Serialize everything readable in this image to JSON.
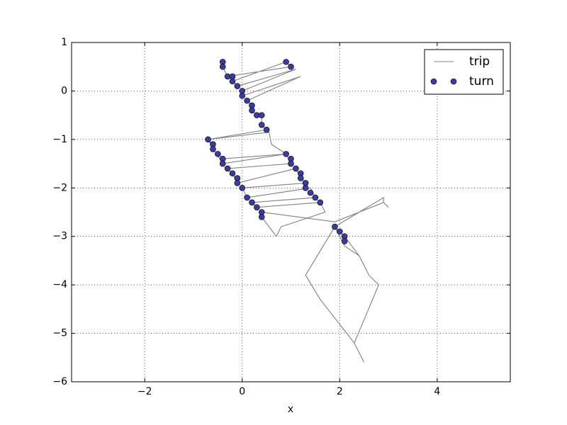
{
  "chart_data": {
    "type": "line",
    "xlabel": "x",
    "xlim": [
      -3.5,
      5.5
    ],
    "ylim": [
      -6,
      1
    ],
    "xticks": [
      {
        "value": -2,
        "label": "−2"
      },
      0,
      2,
      4
    ],
    "yticks": [
      1,
      0,
      {
        "value": -1,
        "label": "−1"
      },
      {
        "value": -2,
        "label": "−2"
      },
      {
        "value": -3,
        "label": "−3"
      },
      {
        "value": -4,
        "label": "−4"
      },
      {
        "value": -5,
        "label": "−5"
      },
      {
        "value": -6,
        "label": "−6"
      }
    ],
    "grid": true,
    "legend": "upper right",
    "series": [
      {
        "name": "trip",
        "style": "line",
        "color": "#808080",
        "x": [
          -0.4,
          -0.4,
          -0.3,
          1.0,
          0.9,
          -0.2,
          -0.1,
          1.1,
          0,
          0,
          1.2,
          0.1,
          0.2,
          0.2,
          0.3,
          0.4,
          0.4,
          0.5,
          -0.7,
          0.55,
          0.6,
          0.9,
          -0.4,
          -0.5,
          -0.6,
          -0.6,
          -0.7,
          -0.4,
          0.9,
          1.0,
          -0.3,
          -0.2,
          -0.1,
          1.1,
          1.2,
          1.3,
          0,
          0.1,
          1.4,
          1.5,
          0.2,
          0.3,
          1.6,
          1.7,
          0.8,
          0.7,
          0.4,
          0.4,
          1.9,
          2.9,
          3.0,
          2.9,
          2.9,
          1.9,
          2.0,
          2.1,
          2.4,
          2.1,
          1.9,
          1.3,
          1.6,
          2.3,
          2.5,
          2.3,
          2.8,
          2.6,
          2.4
        ],
        "values": [
          0.6,
          0.5,
          0.3,
          0.5,
          0.6,
          0.2,
          0.1,
          0.45,
          0,
          -0.1,
          0.3,
          -0.2,
          -0.3,
          -0.4,
          -0.5,
          -0.5,
          -0.7,
          -0.8,
          -1.0,
          -0.85,
          -1.1,
          -1.3,
          -1.4,
          -1.3,
          -1.2,
          -1.1,
          -1.0,
          -1.5,
          -1.3,
          -1.5,
          -1.6,
          -1.7,
          -1.9,
          -1.6,
          -1.8,
          -1.9,
          -2.0,
          -2.2,
          -2.0,
          -2.2,
          -2.3,
          -2.4,
          -2.3,
          -2.5,
          -2.8,
          -3.0,
          -2.6,
          -2.5,
          -2.7,
          -2.3,
          -2.4,
          -2.3,
          -2.2,
          -2.8,
          -2.9,
          -3.0,
          -3.4,
          -3.2,
          -2.8,
          -3.8,
          -4.3,
          -5.2,
          -5.6,
          -5.2,
          -4.0,
          -3.8,
          -3.4
        ]
      },
      {
        "name": "turn",
        "style": "markers",
        "color": "#3c3c9c",
        "x": [
          -0.4,
          -0.4,
          -0.3,
          -0.2,
          -0.2,
          -0.1,
          0,
          0,
          0.1,
          0.2,
          0.2,
          0.3,
          0.4,
          0.4,
          0.5,
          0.9,
          1.0,
          -0.7,
          -0.6,
          -0.6,
          -0.5,
          -0.4,
          -0.4,
          -0.3,
          -0.2,
          -0.1,
          -0.1,
          0,
          0.1,
          0.2,
          0.3,
          0.4,
          0.4,
          0.9,
          1.0,
          1.0,
          1.1,
          1.2,
          1.2,
          1.3,
          1.3,
          1.4,
          1.5,
          1.6,
          1.9,
          2.0,
          2.1,
          2.1
        ],
        "values": [
          0.6,
          0.5,
          0.3,
          0.3,
          0.2,
          0.1,
          0,
          -0.1,
          -0.2,
          -0.3,
          -0.4,
          -0.5,
          -0.5,
          -0.7,
          -0.8,
          0.6,
          0.5,
          -1.0,
          -1.1,
          -1.2,
          -1.3,
          -1.4,
          -1.5,
          -1.6,
          -1.7,
          -1.8,
          -1.9,
          -2.0,
          -2.2,
          -2.3,
          -2.4,
          -2.5,
          -2.6,
          -1.3,
          -1.4,
          -1.5,
          -1.6,
          -1.7,
          -1.8,
          -1.9,
          -2.0,
          -2.1,
          -2.2,
          -2.3,
          -2.8,
          -2.9,
          -3.0,
          -3.1
        ]
      }
    ]
  }
}
